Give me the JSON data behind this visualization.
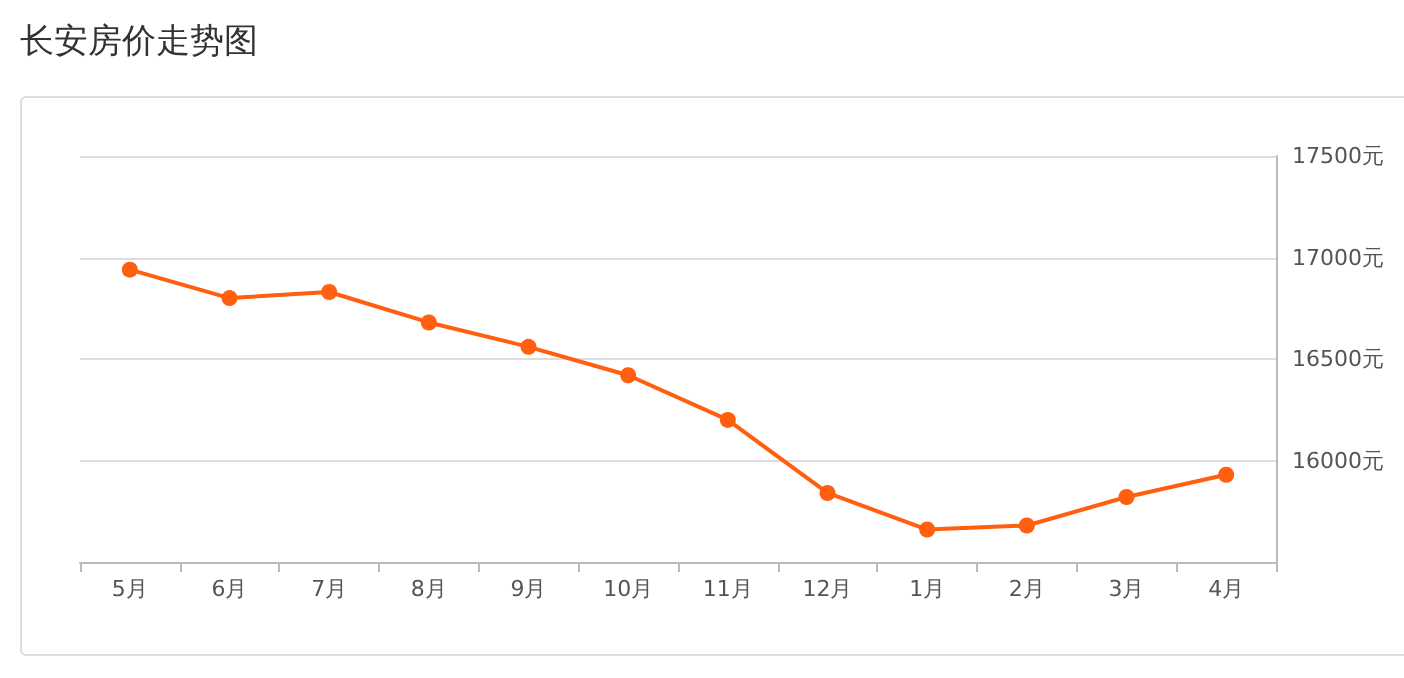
{
  "chart_data": {
    "type": "line",
    "title": "长安房价走势图",
    "categories": [
      "5月",
      "6月",
      "7月",
      "8月",
      "9月",
      "10月",
      "11月",
      "12月",
      "1月",
      "2月",
      "3月",
      "4月"
    ],
    "series": [
      {
        "color": "#ff5f0f",
        "values": [
          16940,
          16800,
          16830,
          16680,
          16560,
          16420,
          16200,
          15840,
          15660,
          15680,
          15820,
          15930
        ]
      }
    ],
    "ylim": [
      15500,
      17500
    ],
    "yticks": [
      {
        "value": 15500,
        "label": null
      },
      {
        "value": 16000,
        "label": "16000元"
      },
      {
        "value": 16500,
        "label": "16500元"
      },
      {
        "value": 17000,
        "label": "17000元"
      },
      {
        "value": 17500,
        "label": "17500元"
      }
    ],
    "grid": "y",
    "marker": "circle",
    "line_style": "solid"
  }
}
